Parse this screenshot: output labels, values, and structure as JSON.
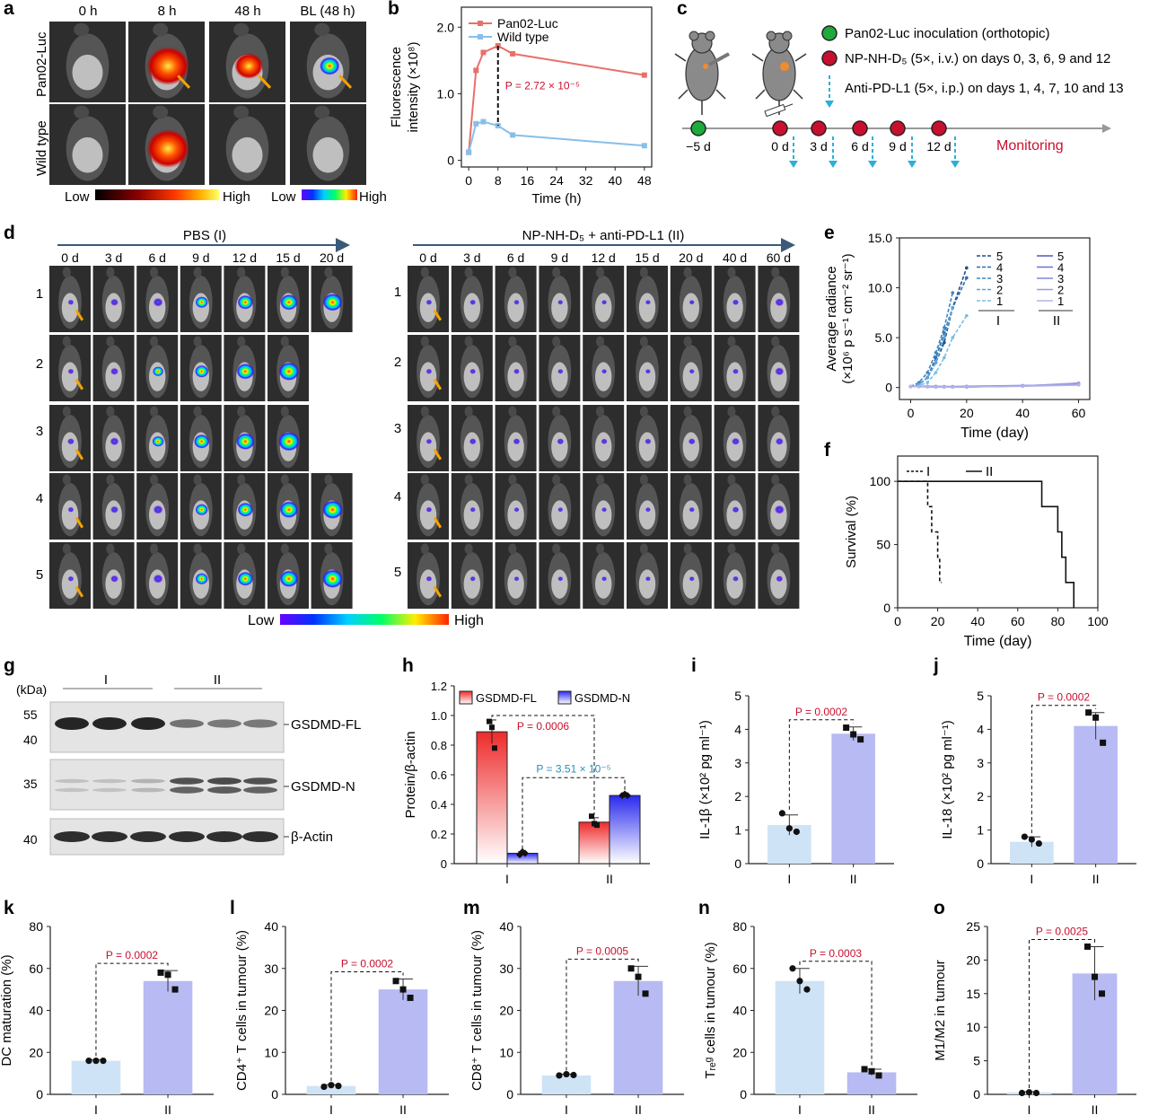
{
  "panels": {
    "a": {
      "label": "a",
      "timepoints": [
        "0 h",
        "8 h",
        "48 h",
        "BL (48 h)"
      ],
      "rows": [
        "Pan02-Luc",
        "Wild type"
      ],
      "scale1_low": "Low",
      "scale1_high": "High",
      "scale2_low": "Low",
      "scale2_high": "High",
      "signal": [
        [
          0,
          1,
          0.6,
          0.35
        ],
        [
          0,
          1,
          0,
          0
        ]
      ]
    },
    "c": {
      "label": "c",
      "legend": [
        {
          "text": "Pan02-Luc inoculation (orthotopic)",
          "color": "#1faa3c"
        },
        {
          "text": "NP-NH-D₅ (5×, i.v.) on days 0, 3, 6, 9 and 12",
          "color": "#c8102e"
        },
        {
          "text": "Anti-PD-L1 (5×, i.p.) on days 1, 4, 7, 10 and 13",
          "color": "#2ab0d8"
        }
      ],
      "days": [
        "−5 d",
        "0 d",
        "3 d",
        "6 d",
        "9 d",
        "12 d"
      ],
      "monitoring": "Monitoring",
      "arrow_color": "#2ab0d8"
    },
    "d": {
      "label": "d",
      "group1_title": "PBS (I)",
      "group2_title": "NP-NH-D₅ + anti-PD-L1 (II)",
      "group1_days": [
        "0 d",
        "3 d",
        "6 d",
        "9 d",
        "12 d",
        "15 d",
        "20 d"
      ],
      "group2_days": [
        "0 d",
        "3 d",
        "6 d",
        "9 d",
        "12 d",
        "15 d",
        "20 d",
        "40 d",
        "60 d"
      ],
      "rows": [
        "1",
        "2",
        "3",
        "4",
        "5"
      ],
      "group1_signal": [
        [
          0.1,
          0.2,
          0.3,
          0.45,
          0.6,
          0.7,
          0.8
        ],
        [
          0.1,
          0.2,
          0.35,
          0.5,
          0.7,
          0.85,
          null
        ],
        [
          0.15,
          0.25,
          0.4,
          0.6,
          0.75,
          0.9,
          null
        ],
        [
          0.1,
          0.2,
          0.3,
          0.45,
          0.6,
          0.75,
          0.85
        ],
        [
          0.1,
          0.2,
          0.3,
          0.45,
          0.6,
          0.75,
          0.85
        ]
      ],
      "group2_signal": [
        [
          0.1,
          0.1,
          0.08,
          0.05,
          0.05,
          0.04,
          0.05,
          0.12,
          0.25
        ],
        [
          0.1,
          0.1,
          0.1,
          0.08,
          0.06,
          0.05,
          0.06,
          0.1,
          0.25
        ],
        [
          0.1,
          0.15,
          0.15,
          0.15,
          0.12,
          0.12,
          0.15,
          0.2,
          0.2
        ],
        [
          0.1,
          0.08,
          0.06,
          0.05,
          0.04,
          0.04,
          0.08,
          0.15,
          0.3
        ],
        [
          0.1,
          0.08,
          0.06,
          0.05,
          0.05,
          0.04,
          0.05,
          0.1,
          0.15
        ]
      ],
      "scale_low": "Low",
      "scale_high": "High"
    },
    "g": {
      "label": "g",
      "kda": "(kDa)",
      "groups": [
        "I",
        "II"
      ],
      "markers": [
        "55",
        "40",
        "35",
        "40"
      ],
      "bands": [
        "GSDMD-FL",
        "GSDMD-N",
        "β-Actin"
      ]
    },
    "k_tick_labels": "I II"
  },
  "chart_data": [
    {
      "panel": "b",
      "type": "line",
      "xlabel": "Time (h)",
      "ylabel_line1": "Fluorescence",
      "ylabel_line2": "intensity (×10⁸)",
      "xlim": [
        -2,
        50
      ],
      "ylim": [
        -0.1,
        2.3
      ],
      "xticks": [
        0,
        8,
        16,
        24,
        32,
        40,
        48
      ],
      "yticks": [
        0,
        1.0,
        2.0
      ],
      "ytick_labels": [
        "0",
        "1.0",
        "2.0"
      ],
      "series": [
        {
          "name": "Pan02-Luc",
          "color": "#e8706b",
          "x": [
            0,
            2,
            4,
            8,
            12,
            48
          ],
          "y": [
            0.12,
            1.35,
            1.62,
            1.72,
            1.6,
            1.28
          ]
        },
        {
          "name": "Wild type",
          "color": "#88bfe8",
          "x": [
            0,
            2,
            4,
            8,
            12,
            48
          ],
          "y": [
            0.12,
            0.55,
            0.58,
            0.52,
            0.38,
            0.22
          ]
        }
      ],
      "annotation": "P = 2.72 × 10⁻⁵"
    },
    {
      "panel": "e",
      "type": "line",
      "xlabel": "Time (day)",
      "ylabel_line1": "Average radiance",
      "ylabel_line2": "(×10⁶ p s⁻¹ cm⁻² sr⁻¹)",
      "xlim": [
        -4,
        64
      ],
      "ylim": [
        -1.2,
        15
      ],
      "xticks": [
        0,
        20,
        40,
        60
      ],
      "yticks": [
        0,
        5.0,
        10.0,
        15.0
      ],
      "ytick_labels": [
        "0",
        "5.0",
        "10.0",
        "15.0"
      ],
      "legend_groups": [
        "I",
        "II"
      ],
      "legend_numbers": [
        "5",
        "4",
        "3",
        "2",
        "1"
      ],
      "series": [
        {
          "name": "5",
          "group": "I",
          "color": "#1f4e8c",
          "x": [
            0,
            3,
            6,
            9,
            12,
            15,
            20
          ],
          "y": [
            0.1,
            0.3,
            1.0,
            2.5,
            4.5,
            8.0,
            12.0
          ]
        },
        {
          "name": "4",
          "group": "I",
          "color": "#2e6aa8",
          "x": [
            0,
            3,
            6,
            9,
            12,
            15,
            20
          ],
          "y": [
            0.1,
            0.3,
            1.0,
            3.0,
            5.5,
            8.0,
            11.0
          ]
        },
        {
          "name": "3",
          "group": "I",
          "color": "#3f86c0",
          "x": [
            0,
            3,
            6,
            9,
            12,
            15
          ],
          "y": [
            0.1,
            0.5,
            1.5,
            3.5,
            6.0,
            9.5
          ]
        },
        {
          "name": "2",
          "group": "I",
          "color": "#5aa3d3",
          "x": [
            0,
            3,
            6,
            9,
            12,
            15
          ],
          "y": [
            0.1,
            0.3,
            1.0,
            2.5,
            5.0,
            8.0
          ]
        },
        {
          "name": "1",
          "group": "I",
          "color": "#7cbde3",
          "x": [
            0,
            3,
            6,
            9,
            12,
            15,
            20
          ],
          "y": [
            0.1,
            0.2,
            0.5,
            1.5,
            3.0,
            5.0,
            7.2
          ]
        },
        {
          "name": "5",
          "group": "II",
          "color": "#5557c8",
          "x": [
            0,
            3,
            6,
            9,
            12,
            15,
            20,
            40,
            60
          ],
          "y": [
            0.1,
            0.1,
            0.08,
            0.05,
            0.05,
            0.04,
            0.05,
            0.15,
            0.35
          ]
        },
        {
          "name": "4",
          "group": "II",
          "color": "#6d6fd2",
          "x": [
            0,
            3,
            6,
            9,
            12,
            15,
            20,
            40,
            60
          ],
          "y": [
            0.1,
            0.1,
            0.08,
            0.06,
            0.05,
            0.05,
            0.06,
            0.15,
            0.4
          ]
        },
        {
          "name": "3",
          "group": "II",
          "color": "#8486db",
          "x": [
            0,
            3,
            6,
            9,
            12,
            15,
            20,
            40,
            60
          ],
          "y": [
            0.1,
            0.12,
            0.12,
            0.12,
            0.1,
            0.1,
            0.12,
            0.2,
            0.3
          ]
        },
        {
          "name": "2",
          "group": "II",
          "color": "#9c9de3",
          "x": [
            0,
            3,
            6,
            9,
            12,
            15,
            20,
            40,
            60
          ],
          "y": [
            0.1,
            0.1,
            0.1,
            0.08,
            0.06,
            0.06,
            0.08,
            0.15,
            0.45
          ]
        },
        {
          "name": "1",
          "group": "II",
          "color": "#b3b4ea",
          "x": [
            0,
            3,
            6,
            9,
            12,
            15,
            20,
            40,
            60
          ],
          "y": [
            0.1,
            0.08,
            0.06,
            0.05,
            0.04,
            0.04,
            0.06,
            0.12,
            0.25
          ]
        }
      ]
    },
    {
      "panel": "f",
      "type": "line",
      "xlabel": "Time (day)",
      "ylabel": "Survival (%)",
      "xlim": [
        0,
        100
      ],
      "ylim": [
        0,
        120
      ],
      "xticks": [
        0,
        20,
        40,
        60,
        80,
        100
      ],
      "yticks": [
        0,
        50,
        100
      ],
      "series": [
        {
          "name": "I",
          "dash": true,
          "x": [
            0,
            15,
            15,
            17,
            17,
            20,
            20,
            21,
            21,
            22
          ],
          "y": [
            100,
            100,
            80,
            80,
            60,
            60,
            40,
            40,
            20,
            20
          ]
        },
        {
          "name": "II",
          "dash": false,
          "x": [
            0,
            72,
            72,
            80,
            80,
            82,
            82,
            84,
            84,
            88,
            88
          ],
          "y": [
            100,
            100,
            80,
            80,
            60,
            60,
            40,
            40,
            20,
            20,
            0
          ]
        }
      ]
    },
    {
      "panel": "h",
      "type": "bar",
      "categories": [
        "I",
        "II"
      ],
      "ylabel": "Protein/β-actin",
      "ylim": [
        0,
        1.2
      ],
      "yticks": [
        0,
        0.2,
        0.4,
        0.6,
        0.8,
        1.0,
        1.2
      ],
      "series": [
        {
          "name": "GSDMD-FL",
          "color": "#ee2a2a",
          "values": [
            0.89,
            0.28
          ],
          "points": [
            [
              0.96,
              0.92,
              0.78
            ],
            [
              0.32,
              0.27,
              0.26
            ]
          ],
          "sd": [
            0.08,
            0.03
          ]
        },
        {
          "name": "GSDMD-N",
          "color": "#2a2aee",
          "values": [
            0.07,
            0.46
          ],
          "points": [
            [
              0.06,
              0.08,
              0.07
            ],
            [
              0.46,
              0.47,
              0.46
            ]
          ],
          "sd": [
            0.01,
            0.01
          ]
        }
      ],
      "pvalues": [
        "P = 0.0006",
        "P = 3.51 × 10⁻⁵"
      ],
      "pvalue_colors": [
        "#c8102e",
        "#2a8fb8"
      ]
    },
    {
      "panel": "i",
      "type": "bar",
      "categories": [
        "I",
        "II"
      ],
      "ylabel": "IL-1β (×10² pg ml⁻¹)",
      "ylim": [
        0,
        5
      ],
      "yticks": [
        0,
        1,
        2,
        3,
        4,
        5
      ],
      "values": [
        1.15,
        3.87
      ],
      "sd": [
        0.3,
        0.2
      ],
      "points": [
        [
          1.5,
          1.05,
          0.95
        ],
        [
          4.05,
          3.85,
          3.7
        ]
      ],
      "colors": [
        "#cfe3f6",
        "#b8baf3"
      ],
      "pvalue": "P = 0.0002"
    },
    {
      "panel": "j",
      "type": "bar",
      "categories": [
        "I",
        "II"
      ],
      "ylabel": "IL-18 (×10² pg ml⁻¹)",
      "ylim": [
        0,
        5
      ],
      "yticks": [
        0,
        1,
        2,
        3,
        4,
        5
      ],
      "values": [
        0.65,
        4.1
      ],
      "sd": [
        0.15,
        0.4
      ],
      "points": [
        [
          0.8,
          0.72,
          0.6
        ],
        [
          4.5,
          4.35,
          3.6
        ]
      ],
      "colors": [
        "#cfe3f6",
        "#b8baf3"
      ],
      "pvalue": "P = 0.0002"
    },
    {
      "panel": "k",
      "type": "bar",
      "categories": [
        "I",
        "II"
      ],
      "ylabel": "DC maturation (%)",
      "ylim": [
        0,
        80
      ],
      "yticks": [
        0,
        20,
        40,
        60,
        80
      ],
      "values": [
        16,
        54
      ],
      "sd": [
        0.5,
        5
      ],
      "points": [
        [
          16,
          16,
          16
        ],
        [
          58,
          57,
          50
        ]
      ],
      "colors": [
        "#cfe3f6",
        "#b8baf3"
      ],
      "pvalue": "P = 0.0002"
    },
    {
      "panel": "l",
      "type": "bar",
      "categories": [
        "I",
        "II"
      ],
      "ylabel": "CD4⁺ T cells in tumour (%)",
      "ylim": [
        0,
        40
      ],
      "yticks": [
        0,
        10,
        20,
        30,
        40
      ],
      "values": [
        2,
        25
      ],
      "sd": [
        0.3,
        2.5
      ],
      "points": [
        [
          1.8,
          2.2,
          2.0
        ],
        [
          27,
          25,
          23
        ]
      ],
      "colors": [
        "#cfe3f6",
        "#b8baf3"
      ],
      "pvalue": "P = 0.0002"
    },
    {
      "panel": "m",
      "type": "bar",
      "categories": [
        "I",
        "II"
      ],
      "ylabel": "CD8⁺ T cells in tumour (%)",
      "ylim": [
        0,
        40
      ],
      "yticks": [
        0,
        10,
        20,
        30,
        40
      ],
      "values": [
        4.5,
        27
      ],
      "sd": [
        0.3,
        3.5
      ],
      "points": [
        [
          4.5,
          4.8,
          4.6
        ],
        [
          30,
          28,
          24
        ]
      ],
      "colors": [
        "#cfe3f6",
        "#b8baf3"
      ],
      "pvalue": "P = 0.0005"
    },
    {
      "panel": "n",
      "type": "bar",
      "categories": [
        "I",
        "II"
      ],
      "ylabel": "Tᵣₑᵍ cells in tumour (%)",
      "ylim": [
        0,
        80
      ],
      "yticks": [
        0,
        20,
        40,
        60,
        80
      ],
      "values": [
        54,
        10.5
      ],
      "sd": [
        6,
        1.5
      ],
      "points": [
        [
          60,
          54,
          50
        ],
        [
          12,
          11,
          9
        ]
      ],
      "colors": [
        "#cfe3f6",
        "#b8baf3"
      ],
      "pvalue": "P = 0.0003"
    },
    {
      "panel": "o",
      "type": "bar",
      "categories": [
        "I",
        "II"
      ],
      "ylabel": "M1/M2 in tumour",
      "ylim": [
        0,
        25
      ],
      "yticks": [
        0,
        5,
        10,
        15,
        20,
        25
      ],
      "values": [
        0.3,
        18
      ],
      "sd": [
        0.1,
        4
      ],
      "points": [
        [
          0.2,
          0.3,
          0.2
        ],
        [
          22,
          17.5,
          15
        ]
      ],
      "colors": [
        "#cfe3f6",
        "#b8baf3"
      ],
      "pvalue": "P = 0.0025"
    }
  ],
  "colors": {
    "axis": "#222222",
    "pvalue": "#c8102e",
    "arrow": "#3a5a78"
  }
}
